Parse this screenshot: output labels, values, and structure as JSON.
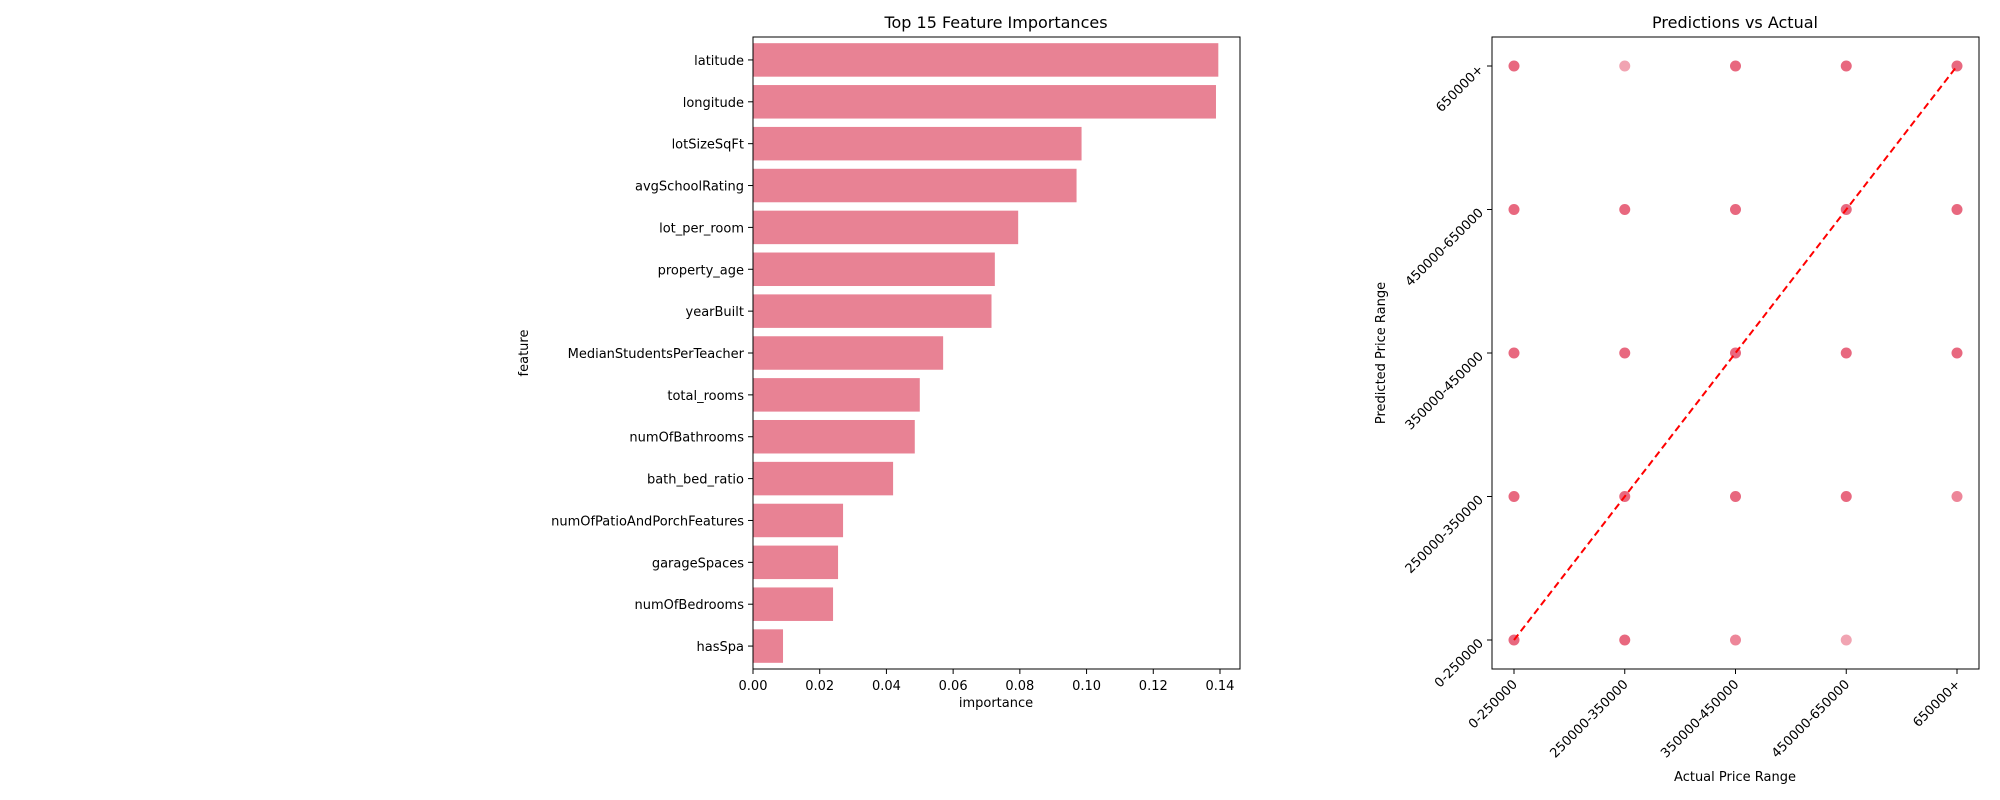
{
  "colors": {
    "bar": "#e88294",
    "point": "#e8687f",
    "diagonal": "#ff0000",
    "axis": "#000000"
  },
  "chart_data": [
    {
      "type": "bar",
      "orientation": "horizontal",
      "title": "Top 15 Feature Importances",
      "xlabel": "importance",
      "ylabel": "feature",
      "categories": [
        "latitude",
        "longitude",
        "lotSizeSqFt",
        "avgSchoolRating",
        "lot_per_room",
        "property_age",
        "yearBuilt",
        "MedianStudentsPerTeacher",
        "total_rooms",
        "numOfBathrooms",
        "bath_bed_ratio",
        "numOfPatioAndPorchFeatures",
        "garageSpaces",
        "numOfBedrooms",
        "hasSpa"
      ],
      "values": [
        0.1395,
        0.1388,
        0.0985,
        0.097,
        0.0795,
        0.0725,
        0.0715,
        0.057,
        0.05,
        0.0485,
        0.042,
        0.027,
        0.0255,
        0.024,
        0.009
      ],
      "xlim": [
        0,
        0.146
      ],
      "xticks": [
        "0.00",
        "0.02",
        "0.04",
        "0.06",
        "0.08",
        "0.10",
        "0.12",
        "0.14"
      ],
      "grid": false
    },
    {
      "type": "scatter",
      "title": "Predictions vs Actual",
      "xlabel": "Actual Price Range",
      "ylabel": "Predicted Price Range",
      "categories": [
        "0-250000",
        "250000-350000",
        "350000-450000",
        "450000-650000",
        "650000+"
      ],
      "points": [
        {
          "x": "0-250000",
          "y": "0-250000",
          "alpha": 1.0
        },
        {
          "x": "0-250000",
          "y": "250000-350000",
          "alpha": 1.0
        },
        {
          "x": "0-250000",
          "y": "350000-450000",
          "alpha": 1.0
        },
        {
          "x": "0-250000",
          "y": "450000-650000",
          "alpha": 1.0
        },
        {
          "x": "0-250000",
          "y": "650000+",
          "alpha": 1.0
        },
        {
          "x": "250000-350000",
          "y": "0-250000",
          "alpha": 1.0
        },
        {
          "x": "250000-350000",
          "y": "250000-350000",
          "alpha": 1.0
        },
        {
          "x": "250000-350000",
          "y": "350000-450000",
          "alpha": 1.0
        },
        {
          "x": "250000-350000",
          "y": "450000-650000",
          "alpha": 1.0
        },
        {
          "x": "250000-350000",
          "y": "650000+",
          "alpha": 0.6
        },
        {
          "x": "350000-450000",
          "y": "0-250000",
          "alpha": 0.8
        },
        {
          "x": "350000-450000",
          "y": "250000-350000",
          "alpha": 1.0
        },
        {
          "x": "350000-450000",
          "y": "350000-450000",
          "alpha": 1.0
        },
        {
          "x": "350000-450000",
          "y": "450000-650000",
          "alpha": 1.0
        },
        {
          "x": "350000-450000",
          "y": "650000+",
          "alpha": 1.0
        },
        {
          "x": "450000-650000",
          "y": "0-250000",
          "alpha": 0.6
        },
        {
          "x": "450000-650000",
          "y": "250000-350000",
          "alpha": 1.0
        },
        {
          "x": "450000-650000",
          "y": "350000-450000",
          "alpha": 1.0
        },
        {
          "x": "450000-650000",
          "y": "450000-650000",
          "alpha": 1.0
        },
        {
          "x": "450000-650000",
          "y": "650000+",
          "alpha": 1.0
        },
        {
          "x": "650000+",
          "y": "250000-350000",
          "alpha": 0.8
        },
        {
          "x": "650000+",
          "y": "350000-450000",
          "alpha": 1.0
        },
        {
          "x": "650000+",
          "y": "450000-650000",
          "alpha": 1.0
        },
        {
          "x": "650000+",
          "y": "650000+",
          "alpha": 1.0
        }
      ],
      "diagonal": {
        "from": [
          "0-250000",
          "0-250000"
        ],
        "to": [
          "650000+",
          "650000+"
        ],
        "style": "dashed"
      },
      "grid": false
    }
  ]
}
